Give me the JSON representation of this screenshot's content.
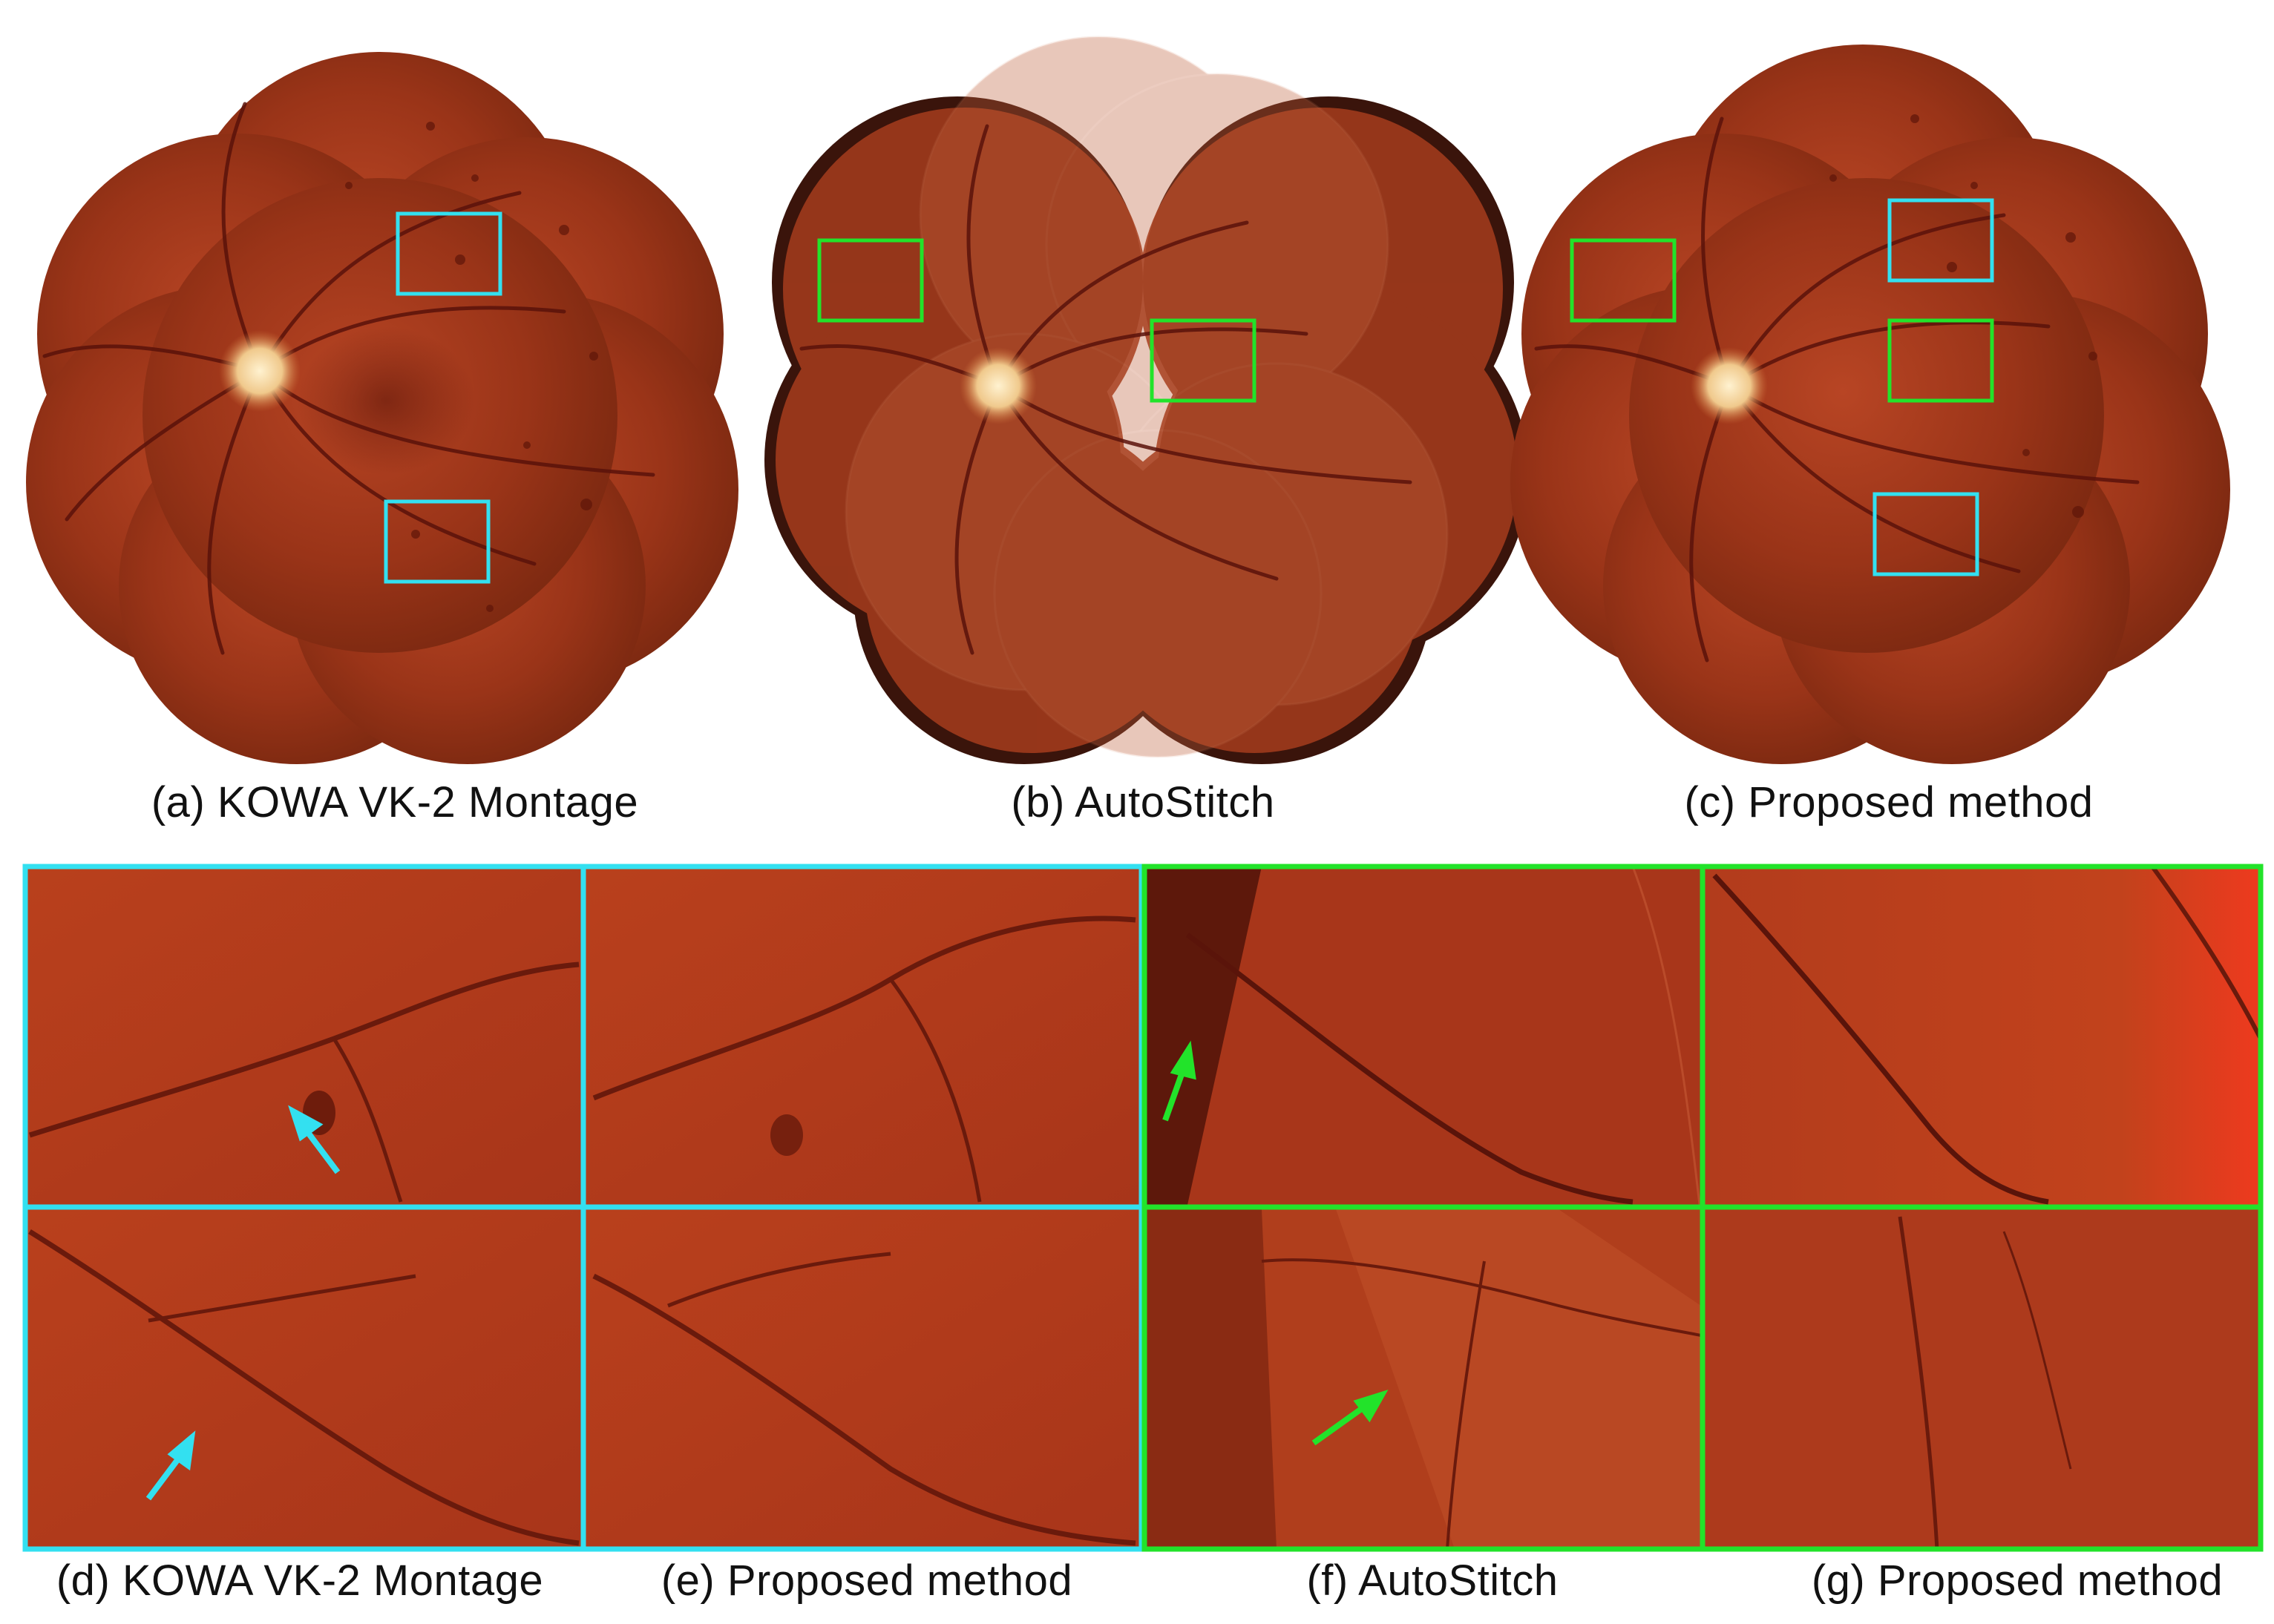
{
  "colors": {
    "cyan_box": "#33e0f0",
    "green_box": "#22e32a",
    "fundus_dark": "#6e200c",
    "fundus_mid": "#a3361a",
    "fundus_light": "#c5522a",
    "vessel": "#5a120a",
    "optic_disc": "#f3d7a4"
  },
  "top_captions": {
    "a": "(a) KOWA VK-2 Montage",
    "b": "(b) AutoStitch",
    "c": "(c) Proposed method"
  },
  "bottom_captions": {
    "d": "(d) KOWA VK-2 Montage",
    "e": "(e) Proposed method",
    "f": "(f) AutoStitch",
    "g": "(g) Proposed method"
  }
}
